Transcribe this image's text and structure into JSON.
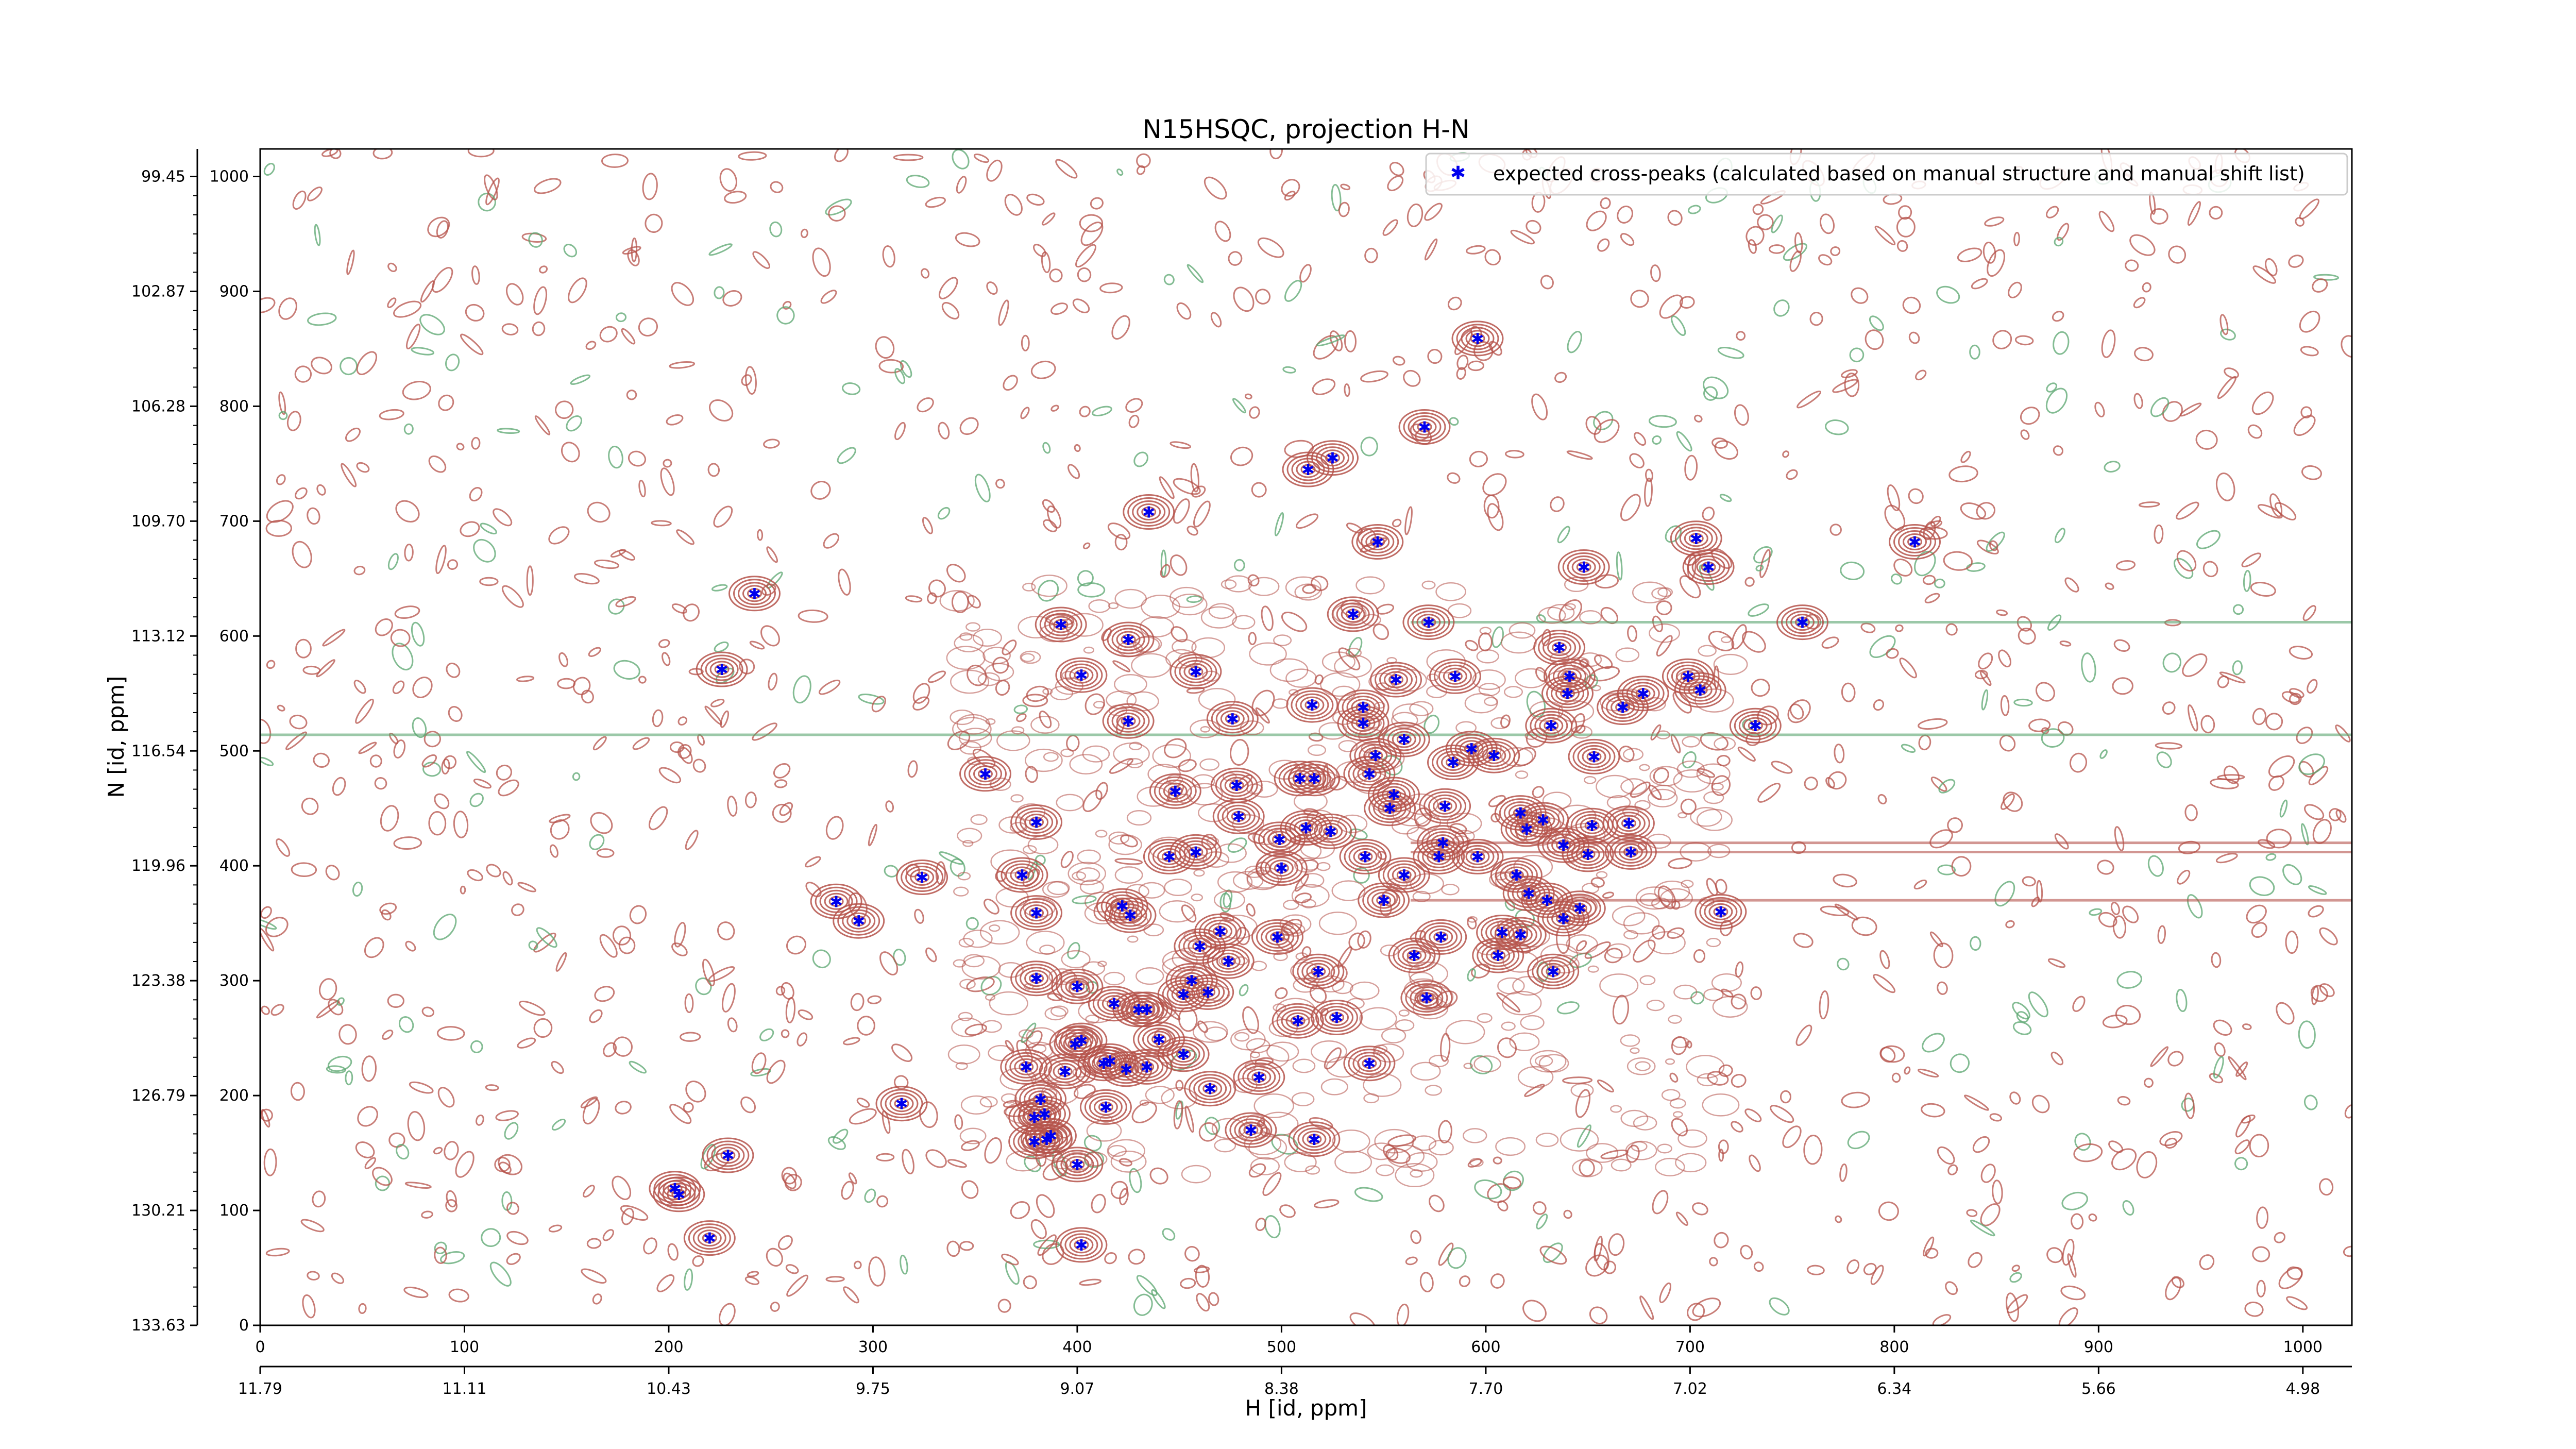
{
  "chart_data": {
    "type": "scatter",
    "title": "N15HSQC, projection H-N",
    "xlabel": "H [id, ppm]",
    "ylabel": "N [id, ppm]",
    "xlim": [
      0,
      1024
    ],
    "ylim": [
      0,
      1024
    ],
    "x_ticks": [
      "0",
      "100",
      "200",
      "300",
      "400",
      "500",
      "600",
      "700",
      "800",
      "900",
      "1000"
    ],
    "y_ticks": [
      "0",
      "100",
      "200",
      "300",
      "400",
      "500",
      "600",
      "700",
      "800",
      "900",
      "1000"
    ],
    "ppm_x_ticks": [
      "11.79",
      "11.11",
      "10.43",
      "9.75",
      "9.07",
      "8.38",
      "7.70",
      "7.02",
      "6.34",
      "5.66",
      "4.98"
    ],
    "ppm_y_ticks": [
      "133.63",
      "130.21",
      "126.79",
      "123.38",
      "119.96",
      "116.54",
      "113.12",
      "109.70",
      "106.28",
      "102.87",
      "99.45"
    ],
    "legend": {
      "position": "top-right",
      "label": "expected cross-peaks (calculated based on manual structure and manual shift list)"
    },
    "colors": {
      "positive_contours": "#b5524a",
      "negative_contours": "#5aa56f",
      "markers": "#0000ee"
    },
    "series": [
      {
        "name": "expected cross-peaks (calculated based on manual structure and manual shift list)",
        "points": [
          [
            596,
            859
          ],
          [
            570,
            782
          ],
          [
            525,
            755
          ],
          [
            513,
            745
          ],
          [
            547,
            682
          ],
          [
            435,
            708
          ],
          [
            703,
            685
          ],
          [
            810,
            682
          ],
          [
            648,
            660
          ],
          [
            709,
            660
          ],
          [
            242,
            637
          ],
          [
            535,
            619
          ],
          [
            572,
            612
          ],
          [
            392,
            610
          ],
          [
            755,
            612
          ],
          [
            425,
            597
          ],
          [
            226,
            571
          ],
          [
            402,
            566
          ],
          [
            458,
            569
          ],
          [
            585,
            565
          ],
          [
            636,
            590
          ],
          [
            641,
            565
          ],
          [
            556,
            562
          ],
          [
            699,
            565
          ],
          [
            705,
            553
          ],
          [
            640,
            550
          ],
          [
            677,
            550
          ],
          [
            515,
            540
          ],
          [
            667,
            538
          ],
          [
            425,
            526
          ],
          [
            476,
            528
          ],
          [
            540,
            538
          ],
          [
            540,
            524
          ],
          [
            732,
            522
          ],
          [
            632,
            522
          ],
          [
            560,
            510
          ],
          [
            593,
            502
          ],
          [
            546,
            496
          ],
          [
            604,
            496
          ],
          [
            584,
            490
          ],
          [
            543,
            480
          ],
          [
            653,
            495
          ],
          [
            355,
            480
          ],
          [
            509,
            476
          ],
          [
            516,
            476
          ],
          [
            478,
            470
          ],
          [
            448,
            465
          ],
          [
            555,
            462
          ],
          [
            580,
            452
          ],
          [
            553,
            450
          ],
          [
            479,
            443
          ],
          [
            617,
            446
          ],
          [
            380,
            438
          ],
          [
            620,
            432
          ],
          [
            628,
            440
          ],
          [
            512,
            433
          ],
          [
            652,
            435
          ],
          [
            524,
            430
          ],
          [
            670,
            437
          ],
          [
            499,
            423
          ],
          [
            579,
            420
          ],
          [
            638,
            418
          ],
          [
            445,
            408
          ],
          [
            458,
            412
          ],
          [
            541,
            408
          ],
          [
            577,
            408
          ],
          [
            596,
            408
          ],
          [
            650,
            410
          ],
          [
            671,
            412
          ],
          [
            500,
            398
          ],
          [
            560,
            392
          ],
          [
            615,
            392
          ],
          [
            324,
            390
          ],
          [
            373,
            392
          ],
          [
            621,
            376
          ],
          [
            282,
            369
          ],
          [
            550,
            370
          ],
          [
            630,
            370
          ],
          [
            646,
            363
          ],
          [
            422,
            365
          ],
          [
            426,
            357
          ],
          [
            715,
            360
          ],
          [
            293,
            352
          ],
          [
            380,
            359
          ],
          [
            638,
            354
          ],
          [
            608,
            342
          ],
          [
            470,
            343
          ],
          [
            498,
            338
          ],
          [
            460,
            330
          ],
          [
            578,
            338
          ],
          [
            617,
            340
          ],
          [
            565,
            322
          ],
          [
            606,
            322
          ],
          [
            474,
            317
          ],
          [
            633,
            308
          ],
          [
            518,
            308
          ],
          [
            380,
            302
          ],
          [
            400,
            295
          ],
          [
            456,
            300
          ],
          [
            464,
            290
          ],
          [
            452,
            288
          ],
          [
            430,
            275
          ],
          [
            434,
            275
          ],
          [
            418,
            280
          ],
          [
            571,
            285
          ],
          [
            508,
            265
          ],
          [
            527,
            268
          ],
          [
            402,
            248
          ],
          [
            399,
            245
          ],
          [
            440,
            249
          ],
          [
            452,
            236
          ],
          [
            416,
            230
          ],
          [
            424,
            223
          ],
          [
            413,
            228
          ],
          [
            434,
            225
          ],
          [
            543,
            228
          ],
          [
            375,
            225
          ],
          [
            394,
            221
          ],
          [
            489,
            216
          ],
          [
            465,
            206
          ],
          [
            382,
            197
          ],
          [
            314,
            193
          ],
          [
            414,
            190
          ],
          [
            384,
            184
          ],
          [
            379,
            181
          ],
          [
            385,
            162
          ],
          [
            379,
            160
          ],
          [
            387,
            165
          ],
          [
            485,
            170
          ],
          [
            516,
            162
          ],
          [
            229,
            148
          ],
          [
            400,
            140
          ],
          [
            203,
            119
          ],
          [
            205,
            114
          ],
          [
            220,
            76
          ],
          [
            402,
            70
          ]
        ]
      }
    ]
  }
}
